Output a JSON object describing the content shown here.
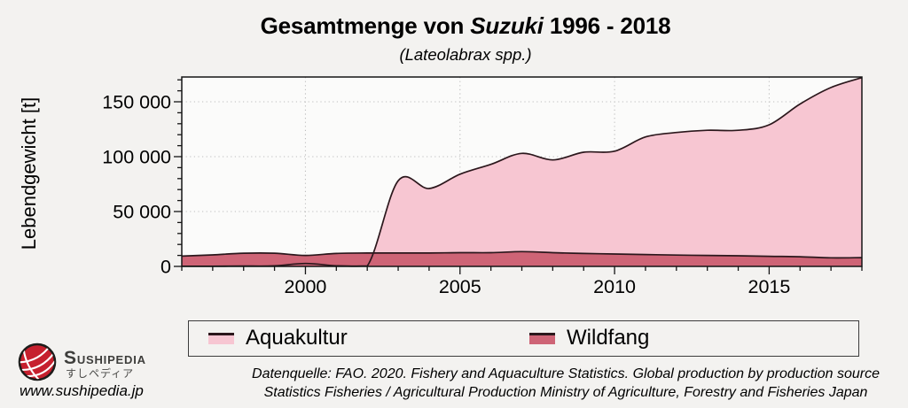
{
  "title": {
    "prefix": "Gesamtmenge von ",
    "species": "Suzuki",
    "suffix": " 1996 - 2018",
    "subtitle": "(Lateolabrax spp.)"
  },
  "chart_data": {
    "type": "area",
    "title": "Gesamtmenge von Suzuki 1996 - 2018",
    "subtitle": "(Lateolabrax spp.)",
    "xlabel": "",
    "ylabel": "Lebendgewicht [t]",
    "xlim": [
      1996,
      2018
    ],
    "ylim": [
      0,
      172500
    ],
    "x": [
      1996,
      1997,
      1998,
      1999,
      2000,
      2001,
      2002,
      2003,
      2004,
      2005,
      2006,
      2007,
      2008,
      2009,
      2010,
      2011,
      2012,
      2013,
      2014,
      2015,
      2016,
      2017,
      2018
    ],
    "series": [
      {
        "name": "Aquakultur",
        "color": "#f7c6d2",
        "values": [
          150,
          200,
          300,
          500,
          2700,
          600,
          400,
          78000,
          71000,
          84000,
          93000,
          103000,
          97000,
          104000,
          105000,
          118000,
          122000,
          124000,
          124000,
          129000,
          148000,
          163000,
          172000
        ]
      },
      {
        "name": "Wildfang",
        "color": "#ce6476",
        "values": [
          9400,
          10500,
          12000,
          12000,
          10000,
          11800,
          12200,
          12200,
          12200,
          12500,
          12500,
          13500,
          12500,
          11800,
          11300,
          10800,
          10300,
          10000,
          9700,
          9200,
          8800,
          7800,
          8000
        ]
      }
    ],
    "line_color": "#2b171c",
    "x_major_ticks": [
      2000,
      2005,
      2010,
      2015
    ],
    "y_major_ticks": [
      {
        "v": 0,
        "label": "0"
      },
      {
        "v": 50000,
        "label": "50 000"
      },
      {
        "v": 100000,
        "label": "100 000"
      },
      {
        "v": 150000,
        "label": "150 000"
      }
    ],
    "x_minor_step": 1,
    "y_minor_step": 10000,
    "grid": "dotted lines at major ticks only",
    "overlay_mode": "overlapping areas (not stacked), dark outline on top edge",
    "legend_position": "bottom"
  },
  "legend": {
    "items": [
      {
        "label": "Aquakultur",
        "swatch_fill": "#f7c6d2",
        "swatch_line": "#2b171c"
      },
      {
        "label": "Wildfang",
        "swatch_fill": "#ce6476",
        "swatch_line": "#2b171c"
      }
    ]
  },
  "branding": {
    "wordmark": "Sushipedia",
    "wordmark_jp": "すしペディア",
    "website": "www.sushipedia.jp",
    "logo_color": "#c6202e"
  },
  "source": {
    "line1": "Datenquelle: FAO. 2020. Fishery and Aquaculture Statistics. Global production by production source",
    "line2": "Statistics Fisheries / Agricultural Production Ministry of Agriculture, Forestry and Fisheries Japan"
  },
  "colors": {
    "page_bg": "#f3f2f0",
    "plot_bg": "#fbfbfa",
    "frame": "#151515",
    "grid": "#bdbdbd"
  }
}
